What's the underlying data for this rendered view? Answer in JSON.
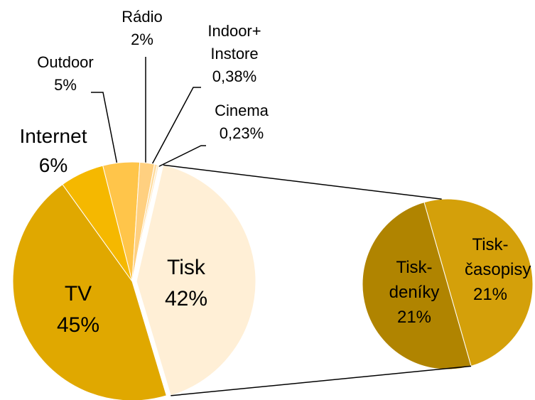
{
  "chart_data": {
    "type": "pie-of-pie",
    "categories": [
      "Tisk",
      "TV",
      "Internet",
      "Outdoor",
      "Rádio",
      "Indoor+ Instore",
      "Cinema"
    ],
    "values": [
      42,
      45,
      6,
      5,
      2,
      0.38,
      0.23
    ],
    "value_labels": [
      "42%",
      "45%",
      "6%",
      "5%",
      "2%",
      "0,38%",
      "0,23%"
    ],
    "colors": [
      "#FFEFD6",
      "#E0A800",
      "#F5B800",
      "#FFC54A",
      "#FFD080",
      "#FFDDA0",
      "#FFE8C0"
    ],
    "sub": {
      "categories": [
        "Tisk-časopisy",
        "Tisk-deníky"
      ],
      "values": [
        21,
        21
      ],
      "value_labels": [
        "21%",
        "21%"
      ],
      "colors": [
        "#D4A00A",
        "#B08400"
      ]
    }
  }
}
